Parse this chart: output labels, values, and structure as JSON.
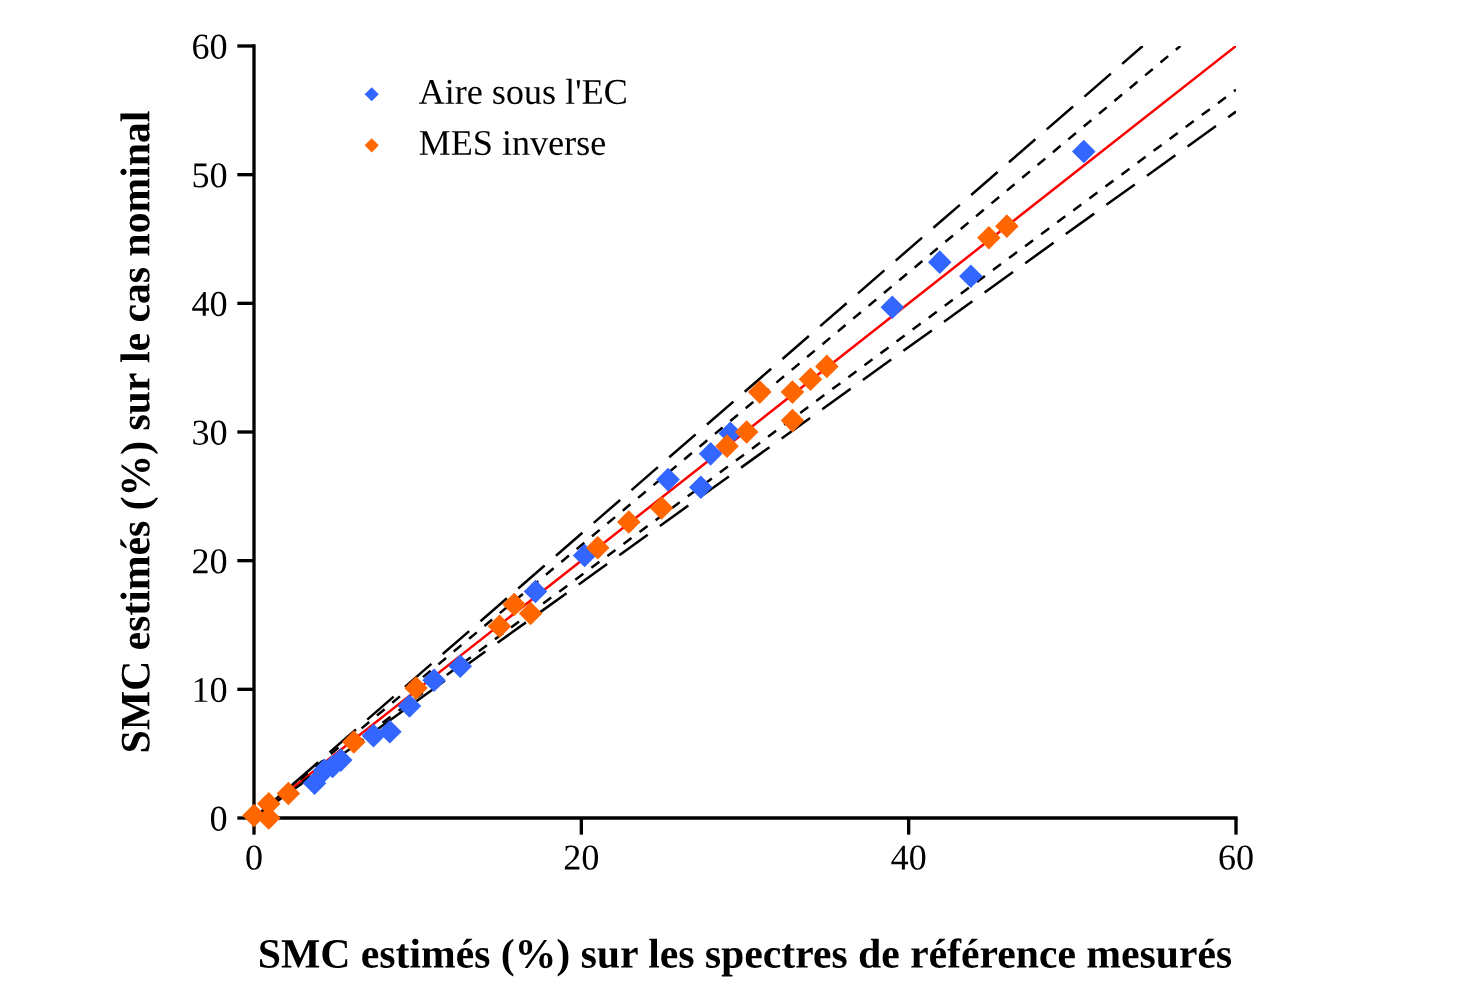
{
  "chart_data": {
    "type": "scatter",
    "xlabel": "SMC estimés (%) sur les spectres de référence mesurés",
    "ylabel": "SMC estimés (%) sur le cas nominal",
    "xlim": [
      0,
      60
    ],
    "ylim": [
      0,
      60
    ],
    "xticks": [
      0,
      20,
      40,
      60
    ],
    "yticks": [
      0,
      10,
      20,
      30,
      40,
      50,
      60
    ],
    "grid": false,
    "legend": "top left",
    "marker": "diamond",
    "series": [
      {
        "name": "Aire sous l'EC",
        "color": "#3366ff",
        "x": [
          3.7,
          4.3,
          5.3,
          4.8,
          7.3,
          8.3,
          9.5,
          11.0,
          12.6,
          17.2,
          20.2,
          25.3,
          27.3,
          27.9,
          29.1,
          39.0,
          41.9,
          43.8,
          50.7
        ],
        "values": [
          2.7,
          3.7,
          4.5,
          4.0,
          6.4,
          6.7,
          8.7,
          10.7,
          11.8,
          17.6,
          20.4,
          26.3,
          25.7,
          28.3,
          29.9,
          39.7,
          43.2,
          42.1,
          51.8
        ]
      },
      {
        "name": "MES inverse",
        "color": "#ff6600",
        "x": [
          0,
          0.9,
          0.9,
          2.1,
          6.1,
          9.9,
          15.0,
          15.9,
          16.9,
          21.0,
          22.9,
          24.9,
          28.9,
          30.1,
          30.9,
          32.9,
          32.9,
          34.0,
          35.0,
          44.9,
          46.0
        ],
        "values": [
          0.2,
          1.1,
          0,
          1.9,
          5.9,
          10.1,
          14.9,
          16.6,
          15.9,
          21.0,
          23.0,
          24.1,
          28.9,
          30.0,
          33.1,
          33.1,
          30.9,
          34.1,
          35.1,
          45.1,
          46.0
        ]
      },
      {
        "type": "line",
        "color": "#ff0000",
        "line_style": "solid",
        "marker": "none",
        "x": [
          0,
          60
        ],
        "values": [
          0,
          60
        ]
      },
      {
        "type": "line",
        "color": "#000000",
        "line_style": "dashed",
        "marker": "none",
        "x": [
          0,
          56.6
        ],
        "values": [
          0,
          60
        ]
      },
      {
        "type": "line",
        "color": "#000000",
        "line_style": "dashed",
        "marker": "none",
        "x": [
          0,
          60
        ],
        "values": [
          0,
          56.6
        ]
      },
      {
        "type": "line",
        "color": "#000000",
        "line_style": "longdash",
        "marker": "none",
        "x": [
          0,
          54.3
        ],
        "values": [
          0,
          60
        ]
      },
      {
        "type": "line",
        "color": "#000000",
        "line_style": "longdash",
        "marker": "none",
        "x": [
          0,
          60
        ],
        "values": [
          0,
          54.9
        ]
      }
    ]
  }
}
